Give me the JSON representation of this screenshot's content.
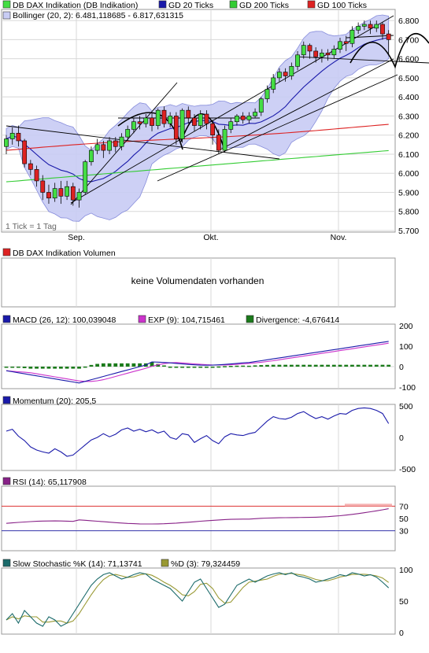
{
  "colors": {
    "price_green": "#44dd44",
    "price_red": "#dd2222",
    "gd20": "#1a1aaa",
    "gd200": "#33cc33",
    "gd100": "#dd2222",
    "bollinger_fill": "#c8ccf4",
    "bollinger_line": "#7a80d8",
    "macd": "#1a1aaa",
    "exp": "#cc33cc",
    "divergence": "#1a7a1a",
    "momentum": "#1a1aaa",
    "rsi": "#882288",
    "rsi_70": "#dd3333",
    "rsi_30": "#3333aa",
    "stoch_k": "#1a6a6a",
    "stoch_d": "#999933",
    "grid": "#d8d8d8"
  },
  "legend": {
    "main": "DB DAX Indikation (DB Indikation)",
    "gd20": "GD 20 Ticks",
    "gd200": "GD 200 Ticks",
    "gd100": "GD 100 Ticks",
    "bollinger": "Bollinger (20, 2): 6.481,118685 - 6.817,631315",
    "tick_note": "1 Tick = 1 Tag",
    "volume": "DB DAX Indikation Volumen",
    "volume_note": "keine Volumendaten vorhanden",
    "macd": "MACD (26, 12): 100,039048",
    "exp": "EXP (9): 104,715461",
    "divergence": "Divergence: -4,676414",
    "momentum": "Momentum (20): 205,5",
    "rsi": "RSI (14): 65,117908",
    "stoch_k": "Slow Stochastic %K (14): 71,13741",
    "stoch_d": "%D (3): 79,324459"
  },
  "chart_data": [
    {
      "type": "candlestick",
      "x_labels": [
        "Sep.",
        "Okt.",
        "Nov."
      ],
      "y_ticks": [
        "5.700",
        "5.800",
        "5.900",
        "6.000",
        "6.100",
        "6.200",
        "6.300",
        "6.400",
        "6.500",
        "6.600",
        "6.700",
        "6.800"
      ],
      "ylim": [
        5700,
        6850
      ],
      "candles": [
        [
          6140,
          6180,
          6100,
          6200
        ],
        [
          6180,
          6210,
          6150,
          6240
        ],
        [
          6210,
          6170,
          6140,
          6250
        ],
        [
          6170,
          6050,
          6030,
          6180
        ],
        [
          6050,
          6020,
          5990,
          6070
        ],
        [
          6020,
          5960,
          5930,
          6040
        ],
        [
          5960,
          5900,
          5860,
          5990
        ],
        [
          5900,
          5870,
          5840,
          5940
        ],
        [
          5870,
          5920,
          5850,
          5950
        ],
        [
          5920,
          5880,
          5840,
          5960
        ],
        [
          5880,
          5930,
          5860,
          5960
        ],
        [
          5930,
          5860,
          5830,
          5950
        ],
        [
          5860,
          5900,
          5820,
          5920
        ],
        [
          5900,
          6060,
          5890,
          6070
        ],
        [
          6060,
          6120,
          6040,
          6140
        ],
        [
          6120,
          6150,
          6100,
          6180
        ],
        [
          6150,
          6120,
          6080,
          6170
        ],
        [
          6120,
          6170,
          6100,
          6190
        ],
        [
          6170,
          6140,
          6110,
          6190
        ],
        [
          6140,
          6190,
          6120,
          6210
        ],
        [
          6190,
          6230,
          6170,
          6250
        ],
        [
          6230,
          6270,
          6210,
          6290
        ],
        [
          6270,
          6260,
          6230,
          6300
        ],
        [
          6260,
          6290,
          6240,
          6310
        ],
        [
          6290,
          6250,
          6220,
          6320
        ],
        [
          6250,
          6330,
          6230,
          6340
        ],
        [
          6330,
          6260,
          6240,
          6350
        ],
        [
          6260,
          6300,
          6240,
          6320
        ],
        [
          6300,
          6180,
          6150,
          6320
        ],
        [
          6180,
          6330,
          6160,
          6340
        ],
        [
          6330,
          6290,
          6260,
          6350
        ],
        [
          6290,
          6250,
          6220,
          6310
        ],
        [
          6250,
          6310,
          6230,
          6330
        ],
        [
          6310,
          6260,
          6230,
          6330
        ],
        [
          6260,
          6200,
          6150,
          6280
        ],
        [
          6200,
          6120,
          6100,
          6230
        ],
        [
          6120,
          6230,
          6110,
          6250
        ],
        [
          6230,
          6270,
          6210,
          6290
        ],
        [
          6270,
          6300,
          6250,
          6310
        ],
        [
          6300,
          6280,
          6260,
          6320
        ],
        [
          6280,
          6300,
          6260,
          6320
        ],
        [
          6300,
          6320,
          6290,
          6340
        ],
        [
          6320,
          6390,
          6300,
          6400
        ],
        [
          6390,
          6440,
          6370,
          6460
        ],
        [
          6440,
          6500,
          6420,
          6520
        ],
        [
          6500,
          6530,
          6480,
          6550
        ],
        [
          6530,
          6510,
          6480,
          6550
        ],
        [
          6510,
          6560,
          6490,
          6580
        ],
        [
          6560,
          6620,
          6540,
          6640
        ],
        [
          6620,
          6670,
          6600,
          6690
        ],
        [
          6670,
          6640,
          6600,
          6680
        ],
        [
          6640,
          6610,
          6580,
          6660
        ],
        [
          6610,
          6630,
          6580,
          6650
        ],
        [
          6630,
          6620,
          6590,
          6650
        ],
        [
          6620,
          6650,
          6600,
          6670
        ],
        [
          6650,
          6690,
          6630,
          6710
        ],
        [
          6690,
          6680,
          6640,
          6720
        ],
        [
          6680,
          6750,
          6660,
          6770
        ],
        [
          6750,
          6770,
          6730,
          6790
        ],
        [
          6770,
          6780,
          6750,
          6800
        ],
        [
          6780,
          6760,
          6730,
          6800
        ],
        [
          6760,
          6780,
          6740,
          6800
        ],
        [
          6780,
          6730,
          6700,
          6790
        ],
        [
          6730,
          6700,
          6620,
          6750
        ]
      ]
    },
    {
      "type": "bar",
      "title": "MACD",
      "y_ticks": [
        "-100",
        "0",
        "100",
        "200"
      ],
      "ylim": [
        -100,
        200
      ]
    },
    {
      "type": "line",
      "title": "Momentum",
      "y_ticks": [
        "-500",
        "0",
        "500"
      ],
      "ylim": [
        -500,
        500
      ]
    },
    {
      "type": "line",
      "title": "RSI",
      "y_ticks": [
        "30",
        "50",
        "70"
      ],
      "ylim": [
        0,
        100
      ]
    },
    {
      "type": "line",
      "title": "Slow Stochastic",
      "y_ticks": [
        "0",
        "50",
        "100"
      ],
      "ylim": [
        0,
        100
      ]
    }
  ]
}
